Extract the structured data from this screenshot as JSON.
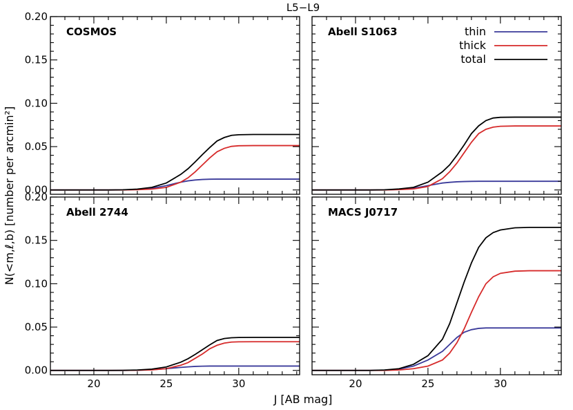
{
  "chart_data": {
    "type": "line",
    "title": "L5−L9",
    "xlabel": "J [AB mag]",
    "ylabel": "N(<m,ℓ,b) [number per arcmin²]",
    "xlim": [
      17,
      34.2
    ],
    "ylim": [
      -0.005,
      0.2
    ],
    "xticks": [
      20,
      25,
      30
    ],
    "yticks": [
      0.0,
      0.05,
      0.1,
      0.15,
      0.2
    ],
    "ytick_labels": [
      "0.00",
      "0.05",
      "0.10",
      "0.15",
      "0.20"
    ],
    "grid": false,
    "legend": {
      "placement": "top-right",
      "panel": 1,
      "entries": [
        {
          "name": "thin",
          "color": "#3a3a9a"
        },
        {
          "name": "thick",
          "color": "#d62a2a"
        },
        {
          "name": "total",
          "color": "#000000"
        }
      ]
    },
    "x": [
      17,
      20,
      21,
      22,
      23,
      24,
      25,
      26,
      26.5,
      27,
      27.5,
      28,
      28.5,
      29,
      29.5,
      30,
      31,
      32,
      33,
      34.2
    ],
    "panels": [
      {
        "label": "COSMOS",
        "series": [
          {
            "name": "thin",
            "values": [
              0,
              0,
              0,
              0.0001,
              0.0006,
              0.002,
              0.005,
              0.009,
              0.0105,
              0.0115,
              0.0121,
              0.0124,
              0.0125,
              0.0125,
              0.0125,
              0.0125,
              0.0125,
              0.0125,
              0.0125,
              0.0125
            ]
          },
          {
            "name": "thick",
            "values": [
              0,
              0,
              0,
              0,
              0.0003,
              0.001,
              0.003,
              0.009,
              0.014,
              0.021,
              0.029,
              0.037,
              0.044,
              0.048,
              0.0503,
              0.051,
              0.0512,
              0.0512,
              0.0512,
              0.0512
            ]
          },
          {
            "name": "total",
            "values": [
              0,
              0,
              0,
              0.0002,
              0.001,
              0.003,
              0.008,
              0.018,
              0.0245,
              0.0325,
              0.041,
              0.049,
              0.0565,
              0.0605,
              0.063,
              0.0637,
              0.064,
              0.064,
              0.064,
              0.064
            ]
          }
        ]
      },
      {
        "label": "Abell S1063",
        "series": [
          {
            "name": "thin",
            "values": [
              0,
              0,
              0,
              0.0001,
              0.0006,
              0.002,
              0.005,
              0.008,
              0.0088,
              0.0094,
              0.0097,
              0.0099,
              0.01,
              0.01,
              0.01,
              0.01,
              0.01,
              0.01,
              0.01,
              0.01
            ]
          },
          {
            "name": "thick",
            "values": [
              0,
              0,
              0,
              0,
              0.0004,
              0.0012,
              0.004,
              0.013,
              0.021,
              0.031,
              0.043,
              0.055,
              0.065,
              0.07,
              0.0725,
              0.0735,
              0.0738,
              0.0738,
              0.0738,
              0.0738
            ]
          },
          {
            "name": "total",
            "values": [
              0,
              0,
              0,
              0.0002,
              0.0012,
              0.003,
              0.009,
              0.021,
              0.029,
              0.04,
              0.052,
              0.065,
              0.074,
              0.08,
              0.083,
              0.0838,
              0.084,
              0.084,
              0.084,
              0.084
            ]
          }
        ]
      },
      {
        "label": "Abell 2744",
        "series": [
          {
            "name": "thin",
            "values": [
              0,
              0,
              0,
              0,
              0.0002,
              0.0008,
              0.002,
              0.0035,
              0.0041,
              0.0046,
              0.0049,
              0.005,
              0.005,
              0.005,
              0.005,
              0.005,
              0.005,
              0.005,
              0.005,
              0.005
            ]
          },
          {
            "name": "thick",
            "values": [
              0,
              0,
              0,
              0,
              0.0002,
              0.0006,
              0.002,
              0.006,
              0.009,
              0.014,
              0.019,
              0.025,
              0.029,
              0.0315,
              0.0327,
              0.033,
              0.0331,
              0.0331,
              0.0331,
              0.0331
            ]
          },
          {
            "name": "total",
            "values": [
              0,
              0,
              0,
              0.0001,
              0.0005,
              0.0015,
              0.004,
              0.0095,
              0.0135,
              0.0185,
              0.024,
              0.0295,
              0.0345,
              0.0368,
              0.0377,
              0.038,
              0.0381,
              0.0381,
              0.0381,
              0.0381
            ]
          }
        ]
      },
      {
        "label": "MACS J0717",
        "series": [
          {
            "name": "thin",
            "values": [
              0,
              0,
              0,
              0.0003,
              0.0015,
              0.005,
              0.012,
              0.022,
              0.03,
              0.038,
              0.044,
              0.047,
              0.0485,
              0.049,
              0.049,
              0.049,
              0.049,
              0.049,
              0.049,
              0.049
            ]
          },
          {
            "name": "thick",
            "values": [
              0,
              0,
              0,
              0,
              0.0005,
              0.002,
              0.005,
              0.012,
              0.02,
              0.032,
              0.048,
              0.067,
              0.085,
              0.1,
              0.108,
              0.112,
              0.1145,
              0.115,
              0.115,
              0.115
            ]
          },
          {
            "name": "total",
            "values": [
              0,
              0,
              0,
              0.0005,
              0.002,
              0.007,
              0.017,
              0.036,
              0.054,
              0.078,
              0.102,
              0.124,
              0.142,
              0.153,
              0.159,
              0.162,
              0.1645,
              0.165,
              0.165,
              0.165
            ]
          }
        ]
      }
    ]
  }
}
